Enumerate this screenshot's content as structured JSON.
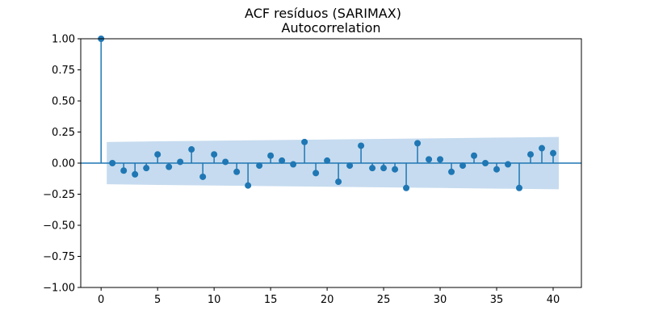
{
  "chart_data": {
    "type": "stem",
    "suptitle": "ACF resíduos (SARIMAX)",
    "title": "Autocorrelation",
    "xlabel": "",
    "ylabel": "",
    "xlim": [
      -1.8,
      42.5
    ],
    "ylim": [
      -1.0,
      1.0
    ],
    "x_ticks": [
      0,
      5,
      10,
      15,
      20,
      25,
      30,
      35,
      40
    ],
    "y_ticks": [
      -1.0,
      -0.75,
      -0.5,
      -0.25,
      0.0,
      0.25,
      0.5,
      0.75,
      1.0
    ],
    "y_tick_labels": [
      "−1.00",
      "−0.75",
      "−0.50",
      "−0.25",
      "0.00",
      "0.25",
      "0.50",
      "0.75",
      "1.00"
    ],
    "grid": false,
    "colors": {
      "stem": "#1f77b4",
      "confidence_band": "#c6dbef"
    },
    "lags": [
      0,
      1,
      2,
      3,
      4,
      5,
      6,
      7,
      8,
      9,
      10,
      11,
      12,
      13,
      14,
      15,
      16,
      17,
      18,
      19,
      20,
      21,
      22,
      23,
      24,
      25,
      26,
      27,
      28,
      29,
      30,
      31,
      32,
      33,
      34,
      35,
      36,
      37,
      38,
      39,
      40
    ],
    "values": [
      1.0,
      0.0,
      -0.06,
      -0.09,
      -0.04,
      0.07,
      -0.03,
      0.01,
      0.11,
      -0.11,
      0.07,
      0.01,
      -0.07,
      -0.18,
      -0.02,
      0.06,
      0.02,
      -0.01,
      0.17,
      -0.08,
      0.02,
      -0.15,
      -0.02,
      0.14,
      -0.04,
      -0.04,
      -0.05,
      -0.2,
      0.16,
      0.03,
      0.03,
      -0.07,
      -0.02,
      0.06,
      0.0,
      -0.05,
      -0.01,
      -0.2,
      0.07,
      0.12,
      0.08
    ],
    "confidence_band": {
      "x": [
        0.5,
        5,
        10,
        15,
        20,
        25,
        30,
        35,
        40.5
      ],
      "upper": [
        0.17,
        0.175,
        0.18,
        0.185,
        0.19,
        0.195,
        0.2,
        0.205,
        0.21
      ],
      "lower": [
        -0.17,
        -0.175,
        -0.18,
        -0.185,
        -0.19,
        -0.195,
        -0.2,
        -0.205,
        -0.21
      ]
    }
  }
}
